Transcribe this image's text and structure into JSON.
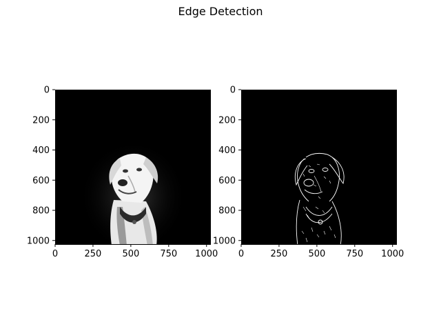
{
  "figure": {
    "title": "Edge Detection"
  },
  "chart_data": [
    {
      "type": "image",
      "content": "grayscale-dog-photo",
      "image_size": [
        1024,
        1024
      ],
      "xlim": [
        0,
        1024
      ],
      "ylim": [
        1024,
        0
      ],
      "xticks": [
        0,
        250,
        500,
        750,
        1000
      ],
      "yticks": [
        0,
        200,
        400,
        600,
        800,
        1000
      ],
      "xtick_labels": [
        "0",
        "250",
        "500",
        "750",
        "1000"
      ],
      "ytick_labels": [
        "0",
        "200",
        "400",
        "600",
        "800",
        "1000"
      ],
      "colormap": "gray",
      "background_color": "#000000"
    },
    {
      "type": "image",
      "content": "edge-map",
      "image_size": [
        1024,
        1024
      ],
      "xlim": [
        0,
        1024
      ],
      "ylim": [
        1024,
        0
      ],
      "xticks": [
        0,
        250,
        500,
        750,
        1000
      ],
      "yticks": [
        0,
        200,
        400,
        600,
        800,
        1000
      ],
      "xtick_labels": [
        "0",
        "250",
        "500",
        "750",
        "1000"
      ],
      "ytick_labels": [
        "0",
        "200",
        "400",
        "600",
        "800",
        "1000"
      ],
      "colormap": "gray",
      "background_color": "#000000"
    }
  ]
}
